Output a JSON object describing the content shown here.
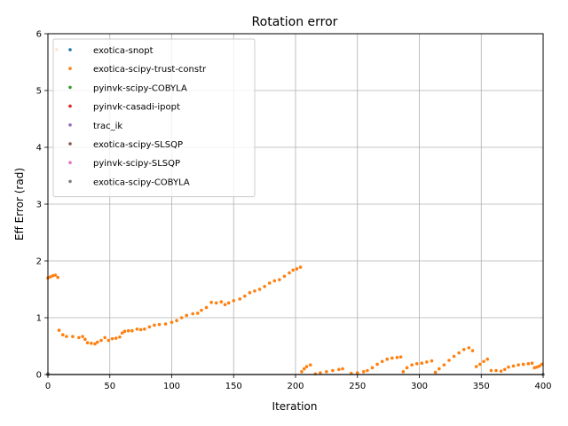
{
  "chart_data": {
    "type": "scatter",
    "title": "Rotation error",
    "xlabel": "Iteration",
    "ylabel": "Eff Error (rad)",
    "xlim": [
      0,
      400
    ],
    "ylim": [
      0,
      6
    ],
    "xticks": [
      0,
      50,
      100,
      150,
      200,
      250,
      300,
      350,
      400
    ],
    "yticks": [
      0,
      1,
      2,
      3,
      4,
      5,
      6
    ],
    "grid": true,
    "legend_position": "top-left",
    "series": [
      {
        "name": "exotica-snopt",
        "color": "#1f77b4",
        "points": [
          [
            0,
            0.01
          ]
        ]
      },
      {
        "name": "exotica-scipy-trust-constr",
        "color": "#ff7f0e",
        "points": [
          [
            0,
            1.7
          ],
          [
            2,
            1.72
          ],
          [
            4,
            1.74
          ],
          [
            6,
            1.75
          ],
          [
            7,
            5.72
          ],
          [
            8,
            1.71
          ],
          [
            9,
            0.78
          ],
          [
            12,
            0.7
          ],
          [
            15,
            0.67
          ],
          [
            20,
            0.67
          ],
          [
            25,
            0.65
          ],
          [
            28,
            0.67
          ],
          [
            30,
            0.62
          ],
          [
            32,
            0.56
          ],
          [
            35,
            0.55
          ],
          [
            38,
            0.54
          ],
          [
            40,
            0.57
          ],
          [
            43,
            0.6
          ],
          [
            46,
            0.65
          ],
          [
            49,
            0.6
          ],
          [
            52,
            0.63
          ],
          [
            55,
            0.64
          ],
          [
            58,
            0.66
          ],
          [
            60,
            0.73
          ],
          [
            62,
            0.76
          ],
          [
            65,
            0.77
          ],
          [
            68,
            0.77
          ],
          [
            72,
            0.8
          ],
          [
            75,
            0.79
          ],
          [
            78,
            0.8
          ],
          [
            82,
            0.84
          ],
          [
            86,
            0.87
          ],
          [
            90,
            0.88
          ],
          [
            95,
            0.89
          ],
          [
            100,
            0.92
          ],
          [
            104,
            0.95
          ],
          [
            108,
            1.0
          ],
          [
            112,
            1.04
          ],
          [
            117,
            1.07
          ],
          [
            121,
            1.08
          ],
          [
            124,
            1.13
          ],
          [
            128,
            1.18
          ],
          [
            132,
            1.27
          ],
          [
            136,
            1.26
          ],
          [
            140,
            1.28
          ],
          [
            143,
            1.23
          ],
          [
            146,
            1.26
          ],
          [
            150,
            1.3
          ],
          [
            155,
            1.33
          ],
          [
            159,
            1.38
          ],
          [
            163,
            1.44
          ],
          [
            167,
            1.47
          ],
          [
            171,
            1.5
          ],
          [
            175,
            1.55
          ],
          [
            179,
            1.61
          ],
          [
            183,
            1.65
          ],
          [
            187,
            1.67
          ],
          [
            191,
            1.73
          ],
          [
            195,
            1.79
          ],
          [
            198,
            1.84
          ],
          [
            201,
            1.86
          ],
          [
            204,
            1.89
          ],
          [
            205,
            0.05
          ],
          [
            207,
            0.1
          ],
          [
            209,
            0.14
          ],
          [
            212,
            0.17
          ],
          [
            216,
            0.01
          ],
          [
            220,
            0.03
          ],
          [
            225,
            0.05
          ],
          [
            230,
            0.07
          ],
          [
            235,
            0.09
          ],
          [
            238,
            0.1
          ],
          [
            245,
            0.02
          ],
          [
            250,
            0.03
          ],
          [
            255,
            0.05
          ],
          [
            258,
            0.07
          ],
          [
            262,
            0.12
          ],
          [
            266,
            0.18
          ],
          [
            270,
            0.23
          ],
          [
            274,
            0.27
          ],
          [
            278,
            0.29
          ],
          [
            282,
            0.3
          ],
          [
            285,
            0.31
          ],
          [
            287,
            0.05
          ],
          [
            290,
            0.12
          ],
          [
            294,
            0.17
          ],
          [
            298,
            0.19
          ],
          [
            302,
            0.2
          ],
          [
            306,
            0.22
          ],
          [
            310,
            0.24
          ],
          [
            313,
            0.04
          ],
          [
            316,
            0.1
          ],
          [
            320,
            0.17
          ],
          [
            324,
            0.25
          ],
          [
            328,
            0.32
          ],
          [
            332,
            0.38
          ],
          [
            336,
            0.44
          ],
          [
            340,
            0.47
          ],
          [
            343,
            0.42
          ],
          [
            346,
            0.14
          ],
          [
            349,
            0.18
          ],
          [
            352,
            0.23
          ],
          [
            355,
            0.27
          ],
          [
            358,
            0.07
          ],
          [
            362,
            0.07
          ],
          [
            366,
            0.06
          ],
          [
            369,
            0.09
          ],
          [
            372,
            0.13
          ],
          [
            376,
            0.15
          ],
          [
            380,
            0.17
          ],
          [
            384,
            0.18
          ],
          [
            388,
            0.19
          ],
          [
            391,
            0.2
          ],
          [
            393,
            0.12
          ],
          [
            395,
            0.13
          ],
          [
            397,
            0.15
          ],
          [
            399,
            0.18
          ]
        ]
      },
      {
        "name": "pyinvk-scipy-COBYLA",
        "color": "#2ca02c",
        "points": [
          [
            0,
            0.0
          ]
        ]
      },
      {
        "name": "pyinvk-casadi-ipopt",
        "color": "#d62728",
        "points": [
          [
            0,
            0.0
          ]
        ]
      },
      {
        "name": "trac_ik",
        "color": "#9467bd",
        "points": [
          [
            0,
            0.0
          ]
        ]
      },
      {
        "name": "exotica-scipy-SLSQP",
        "color": "#8c564b",
        "points": [
          [
            0,
            0.0
          ]
        ]
      },
      {
        "name": "pyinvk-scipy-SLSQP",
        "color": "#e377c2",
        "points": [
          [
            0,
            0.0
          ]
        ]
      },
      {
        "name": "exotica-scipy-COBYLA",
        "color": "#7f7f7f",
        "points": [
          [
            0,
            0.0
          ],
          [
            400,
            0.0
          ]
        ]
      }
    ]
  }
}
